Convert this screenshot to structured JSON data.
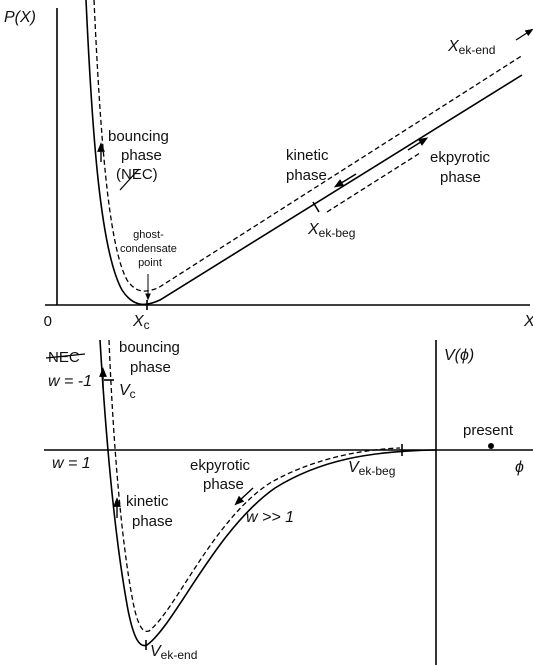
{
  "top": {
    "y_axis": "P(X)",
    "x_axis": "X",
    "origin": "0",
    "xc": {
      "main": "X",
      "sub": "c"
    },
    "bouncing": [
      "bouncing",
      "phase",
      "(NEC)"
    ],
    "ghost": [
      "ghost-",
      "condensate",
      "point"
    ],
    "kinetic": [
      "kinetic",
      "phase"
    ],
    "ekpyrotic": [
      "ekpyrotic",
      "phase"
    ],
    "x_ek_beg": {
      "main": "X",
      "sub": "ek-beg"
    },
    "x_ek_end": {
      "main": "X",
      "sub": "ek-end"
    }
  },
  "bottom": {
    "y_axis": "V(ϕ)",
    "x_axis": "ϕ",
    "nec": "NEC",
    "w_minus": "w = -1",
    "w_one": "w = 1",
    "vc": {
      "main": "V",
      "sub": "c"
    },
    "bouncing": [
      "bouncing",
      "phase"
    ],
    "kinetic": [
      "kinetic",
      "phase"
    ],
    "ekpyrotic": [
      "ekpyrotic",
      "phase"
    ],
    "w_large": "w >> 1",
    "present": "present",
    "v_ek_beg": {
      "main": "V",
      "sub": "ek-beg"
    },
    "v_ek_end": {
      "main": "V",
      "sub": "ek-end"
    }
  }
}
